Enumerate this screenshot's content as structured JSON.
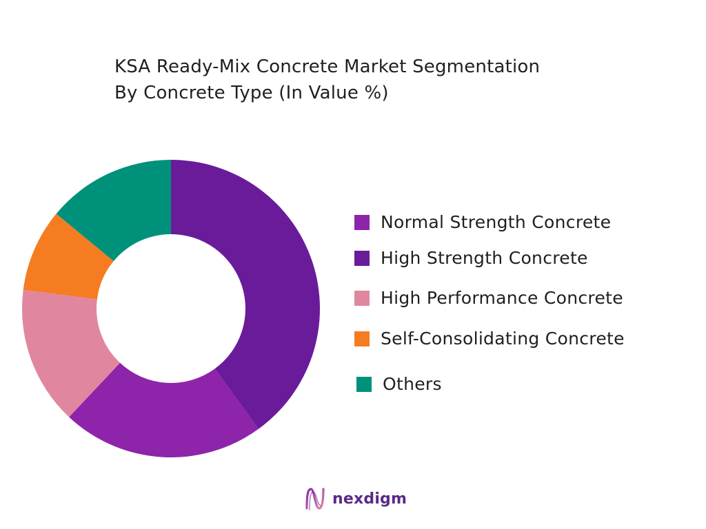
{
  "chart_data": {
    "type": "pie",
    "title_lines": [
      "KSA Ready-Mix Concrete Market Segmentation",
      "By Concrete Type (In Value %)"
    ],
    "title": "KSA Ready-Mix Concrete Market Segmentation By Concrete Type (In Value %)",
    "donut": true,
    "unit": "%",
    "start_angle_deg": 0,
    "direction": "clockwise",
    "slices": [
      {
        "label": "High Strength Concrete",
        "value": 40,
        "color": "#6a1b9a"
      },
      {
        "label": "Normal Strength Concrete",
        "value": 22,
        "color": "#8e24aa"
      },
      {
        "label": "High Performance Concrete",
        "value": 15,
        "color": "#e0879f"
      },
      {
        "label": "Self-Consolidating Concrete",
        "value": 9,
        "color": "#f57c20"
      },
      {
        "label": "Others",
        "value": 14,
        "color": "#00917a"
      }
    ],
    "legend": {
      "placement": "right",
      "entries": [
        {
          "label": "Normal Strength Concrete",
          "color": "#8e24aa"
        },
        {
          "label": "High Strength Concrete",
          "color": "#6a1b9a"
        },
        {
          "label": "High Performance Concrete",
          "color": "#e0879f"
        },
        {
          "label": "Self-Consolidating Concrete",
          "color": "#f57c20"
        },
        {
          "label": "Others",
          "color": "#00917a"
        }
      ]
    }
  },
  "brand": {
    "name": "nexdigm",
    "color": "#5a2a86",
    "icon": "nexdigm-logo-icon"
  }
}
